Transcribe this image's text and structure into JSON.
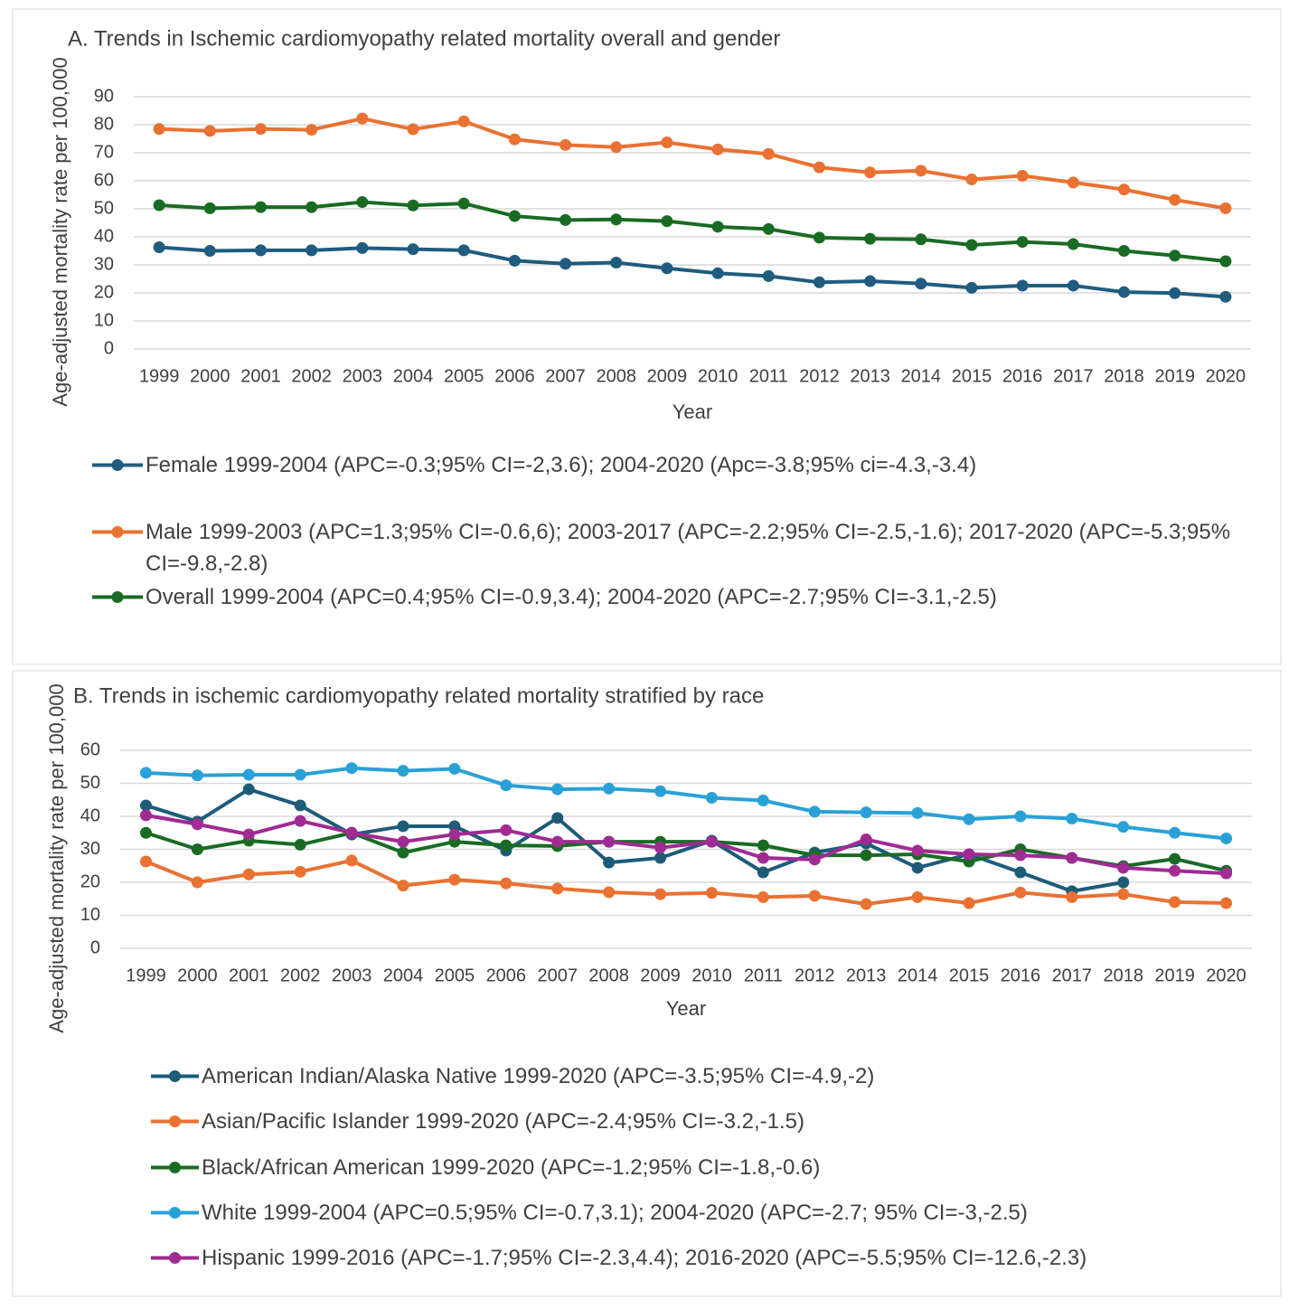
{
  "chart_data": [
    {
      "type": "line",
      "title": "A. Trends in Ischemic cardiomyopathy related mortality overall and  gender",
      "x_label": "Year",
      "y_label": "Age-adjusted mortality rate per 100,000",
      "categories": [
        "1999",
        "2000",
        "2001",
        "2002",
        "2003",
        "2004",
        "2005",
        "2006",
        "2007",
        "2008",
        "2009",
        "2010",
        "2011",
        "2012",
        "2013",
        "2014",
        "2015",
        "2016",
        "2017",
        "2018",
        "2019",
        "2020"
      ],
      "ylim": [
        0,
        90
      ],
      "yticks": [
        0,
        10,
        20,
        30,
        40,
        50,
        60,
        70,
        80,
        90
      ],
      "grid": true,
      "series": [
        {
          "name": "Female 1999-2004 (APC=-0.3;95% CI=-2,3.6); 2004-2020 (Apc=-3.8;95% ci=-4.3,-3.4)",
          "color": "#1f5c7f",
          "values": [
            36.3,
            35,
            35.2,
            35.2,
            36,
            35.6,
            35.2,
            31.5,
            30.4,
            30.8,
            28.8,
            27,
            26,
            23.8,
            24.2,
            23.3,
            21.8,
            22.6,
            22.6,
            20.3,
            19.9,
            18.6
          ]
        },
        {
          "name": "Male 1999-2003 (APC=1.3;95% CI=-0.6,6); 2003-2017 (APC=-2.2;95% CI=-2.5,-1.6); 2017-2020 (APC=-5.3;95% CI=-9.8,-2.8)",
          "color": "#e97132",
          "values": [
            78.5,
            77.8,
            78.5,
            78.2,
            82.2,
            78.4,
            81.2,
            74.8,
            72.8,
            72,
            73.7,
            71.2,
            69.6,
            64.8,
            63,
            63.6,
            60.5,
            61.8,
            59.4,
            56.9,
            53.2,
            50.2
          ]
        },
        {
          "name": "Overall 1999-2004 (APC=0.4;95% CI=-0.9,3.4); 2004-2020 (APC=-2.7;95% CI=-3.1,-2.5)",
          "color": "#196b24",
          "values": [
            51.3,
            50.2,
            50.6,
            50.6,
            52.4,
            51.2,
            51.9,
            47.4,
            46,
            46.2,
            45.6,
            43.6,
            42.8,
            39.7,
            39.3,
            39.1,
            37.1,
            38.2,
            37.4,
            35,
            33.3,
            31.3
          ]
        }
      ]
    },
    {
      "type": "line",
      "title": "B. Trends in ischemic cardiomyopathy related mortality stratified by race",
      "x_label": "Year",
      "y_label": "Age-adjusted mortality rate per 100,000",
      "categories": [
        "1999",
        "2000",
        "2001",
        "2002",
        "2003",
        "2004",
        "2005",
        "2006",
        "2007",
        "2008",
        "2009",
        "2010",
        "2011",
        "2012",
        "2013",
        "2014",
        "2015",
        "2016",
        "2017",
        "2018",
        "2019",
        "2020"
      ],
      "ylim": [
        0,
        60
      ],
      "yticks": [
        0,
        10,
        20,
        30,
        40,
        50,
        60
      ],
      "grid": true,
      "series": [
        {
          "name": "American Indian/Alaska Native 1999-2020 (APC=-3.5;95% CI=-4.9,-2)",
          "color": "#1d5b79",
          "values": [
            43.3,
            38.4,
            48.2,
            43.3,
            34.5,
            37,
            37,
            29.6,
            39.5,
            26,
            27.4,
            32.6,
            23,
            29,
            31.8,
            24.4,
            28.5,
            23,
            17.3,
            20,
            null,
            null
          ]
        },
        {
          "name": "Asian/Pacific Islander 1999-2020 (APC=-2.4;95% CI=-3.2,-1.5)",
          "color": "#e97132",
          "values": [
            26.3,
            20,
            22.4,
            23.2,
            26.6,
            19,
            20.8,
            19.7,
            18.1,
            17,
            16.4,
            16.8,
            15.5,
            15.9,
            13.4,
            15.5,
            13.7,
            16.9,
            15.5,
            16.4,
            14,
            13.7
          ]
        },
        {
          "name": "Black/African American 1999-2020 (APC=-1.2;95% CI=-1.8,-0.6)",
          "color": "#196b24",
          "values": [
            35,
            30,
            32.6,
            31.4,
            35,
            29,
            32.3,
            31.2,
            31,
            32.3,
            32.3,
            32.3,
            31.2,
            28.2,
            28.2,
            28.5,
            26.3,
            30,
            27.4,
            24.9,
            27.1,
            23.5
          ]
        },
        {
          "name": "White 1999-2004 (APC=0.5;95% CI=-0.7,3.1); 2004-2020 (APC=-2.7; 95% CI=-3,-2.5)",
          "color": "#2aa1d6",
          "values": [
            53.2,
            52.4,
            52.6,
            52.6,
            54.6,
            53.8,
            54.4,
            49.4,
            48.2,
            48.4,
            47.6,
            45.6,
            44.8,
            41.4,
            41.2,
            41,
            39.1,
            40,
            39.3,
            36.8,
            35,
            33.3
          ]
        },
        {
          "name": "Hispanic 1999-2016 (APC=-1.7;95% CI=-2.3,4.4); 2016-2020 (APC=-5.5;95% CI=-12.6,-2.3)",
          "color": "#a02b93",
          "values": [
            40.3,
            37.6,
            34.5,
            38.6,
            35,
            32.3,
            34.5,
            35.8,
            32.3,
            32.3,
            30.5,
            32.3,
            27.4,
            26.9,
            33,
            29.6,
            28.5,
            28.2,
            27.4,
            24.4,
            23.5,
            22.7
          ]
        }
      ]
    }
  ]
}
